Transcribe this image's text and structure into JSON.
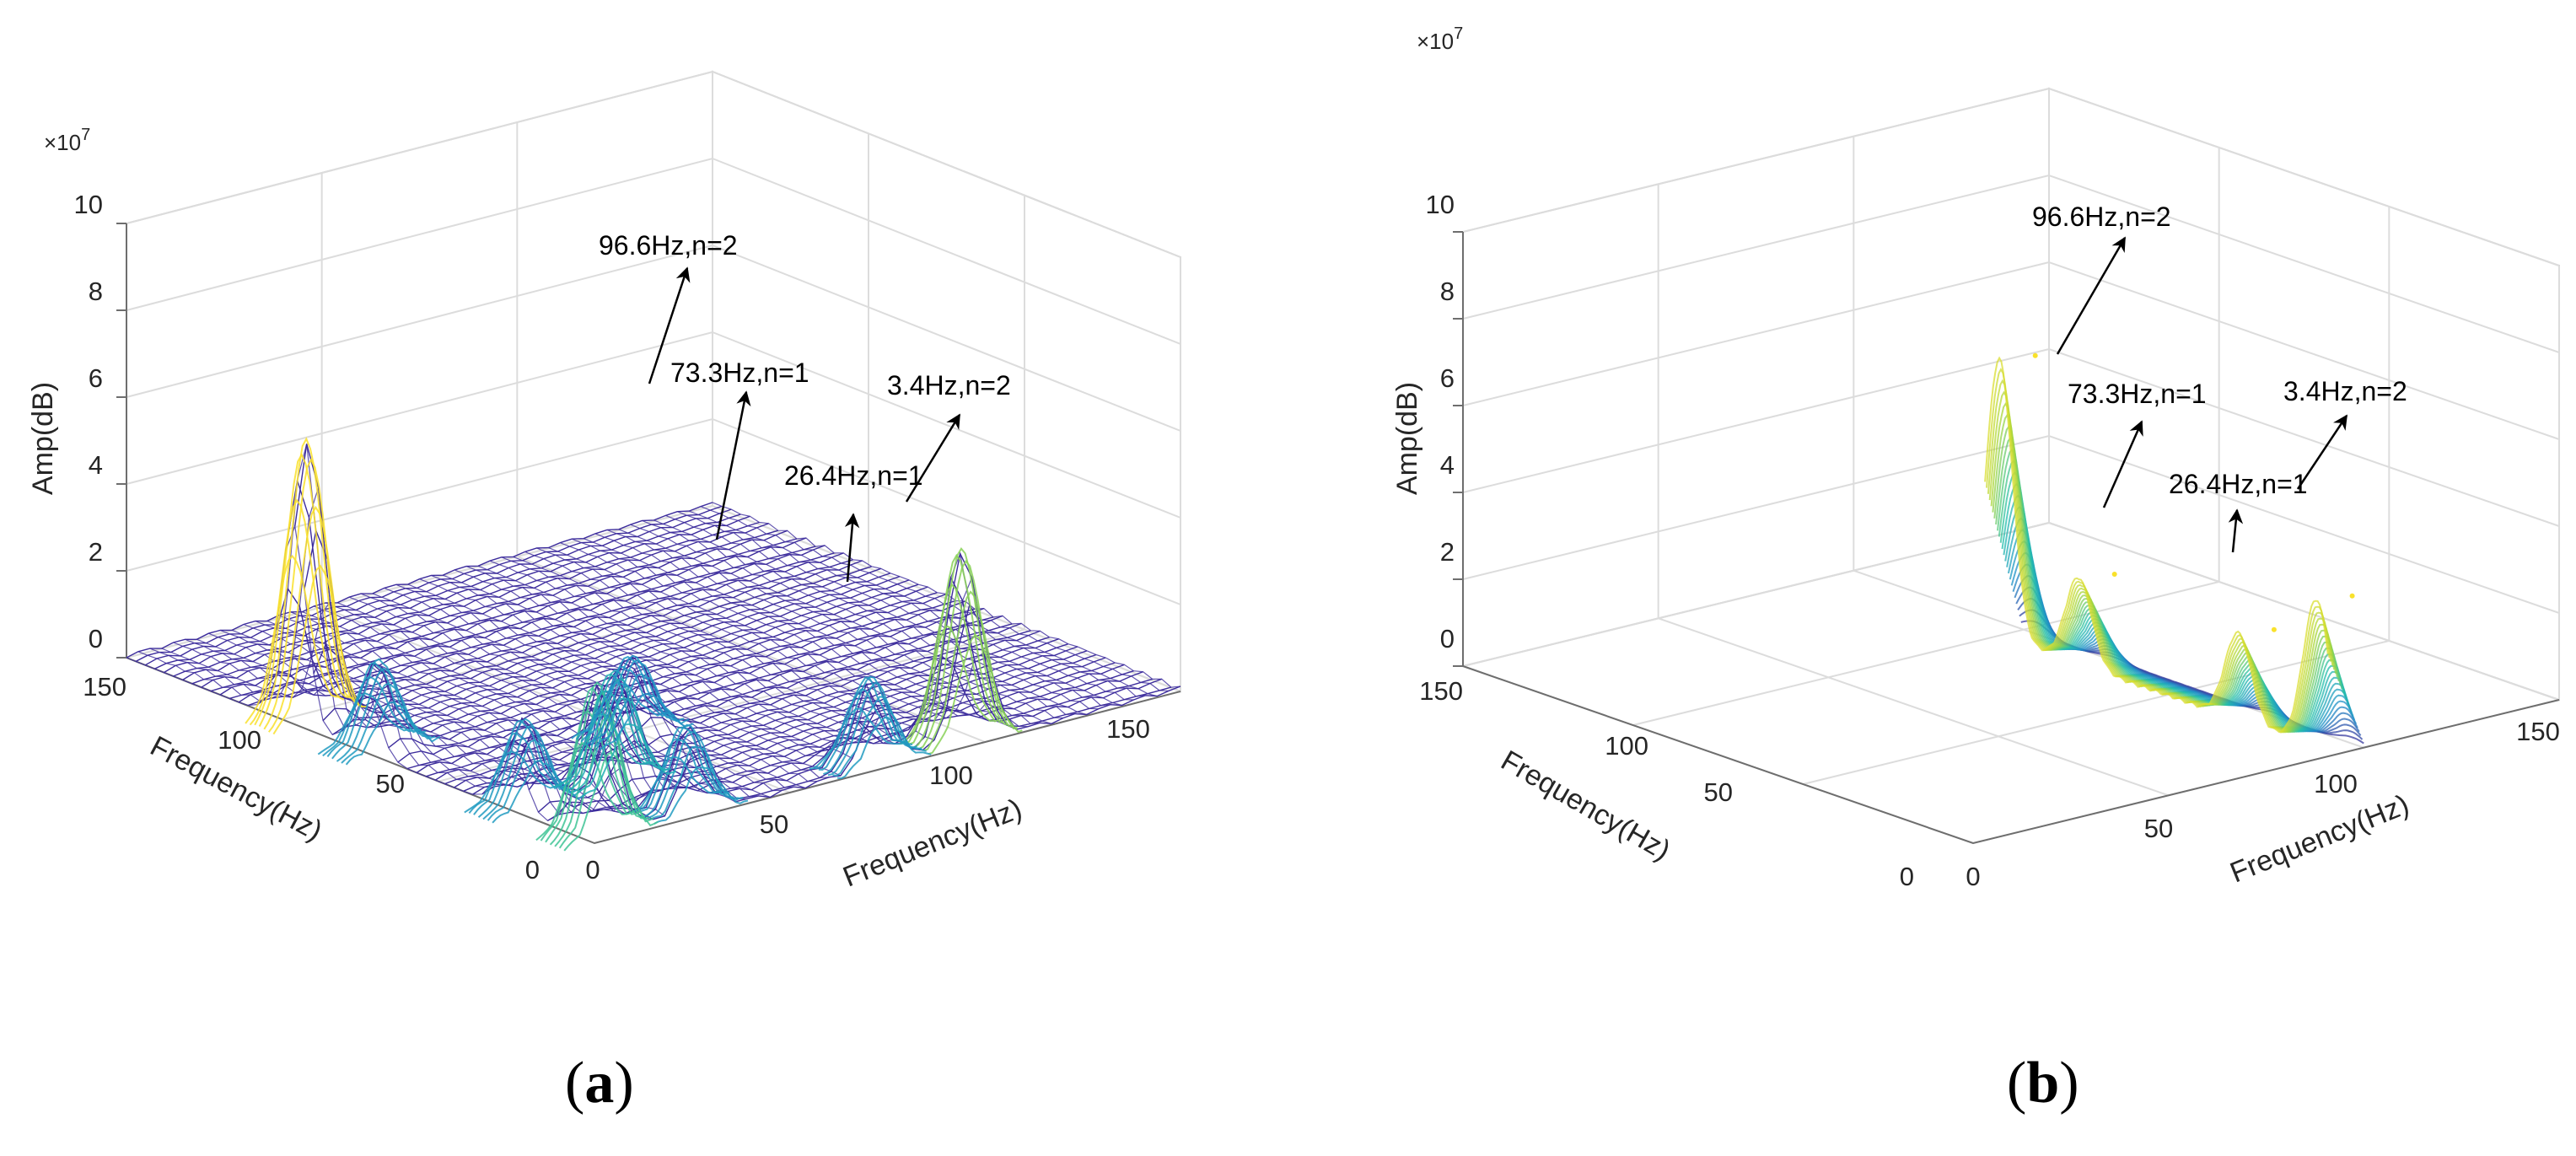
{
  "figure": {
    "panels": [
      {
        "id": "a",
        "label": "a",
        "multiplier": "×10",
        "multiplier_exp": "7",
        "zlabel": "Amp(dB)",
        "xlabel": "Frequency(Hz)",
        "ylabel": "Frequency(Hz)",
        "z_ticks": [
          "0",
          "2",
          "4",
          "6",
          "8",
          "10"
        ],
        "x_ticks": [
          "0",
          "50",
          "100",
          "150"
        ],
        "y_ticks": [
          "0",
          "50",
          "100",
          "150"
        ],
        "annotations": [
          "96.6Hz,n=2",
          "73.3Hz,n=1",
          "26.4Hz,n=1",
          "3.4Hz,n=2"
        ]
      },
      {
        "id": "b",
        "label": "b",
        "multiplier": "×10",
        "multiplier_exp": "7",
        "zlabel": "Amp(dB)",
        "xlabel": "Frequency(Hz)",
        "ylabel": "Frequency(Hz)",
        "z_ticks": [
          "0",
          "2",
          "4",
          "6",
          "8",
          "10"
        ],
        "x_ticks": [
          "0",
          "50",
          "100",
          "150"
        ],
        "y_ticks": [
          "0",
          "50",
          "100",
          "150"
        ],
        "annotations": [
          "96.6Hz,n=2",
          "73.3Hz,n=1",
          "26.4Hz,n=1",
          "3.4Hz,n=2"
        ]
      }
    ]
  },
  "chart_data": [
    {
      "type": "surface",
      "panel": "a",
      "xlabel": "Frequency(Hz)",
      "ylabel": "Frequency(Hz)",
      "zlabel": "Amp(dB)",
      "z_multiplier": "×10^7",
      "xlim": [
        0,
        150
      ],
      "ylim": [
        0,
        150
      ],
      "zlim": [
        0,
        10
      ],
      "grid": true,
      "colormap": [
        "#3b2a98",
        "#1f8fc8",
        "#26c0aa",
        "#a9d63b",
        "#f9e12b"
      ],
      "peaks": [
        {
          "x": 3.4,
          "y": 96.6,
          "z": 6.4
        },
        {
          "x": 96.6,
          "y": 3.4,
          "z": 4.4
        },
        {
          "x": 3.4,
          "y": 73.3,
          "z": 2.0
        },
        {
          "x": 73.3,
          "y": 3.4,
          "z": 2.0
        },
        {
          "x": 3.4,
          "y": 26.4,
          "z": 2.0
        },
        {
          "x": 26.4,
          "y": 3.4,
          "z": 2.0
        },
        {
          "x": 3.4,
          "y": 3.4,
          "z": 3.5
        },
        {
          "x": 26.4,
          "y": 26.4,
          "z": 2.6
        },
        {
          "x": 48.5,
          "y": 48.5,
          "z": 1.8
        }
      ],
      "annotations": [
        {
          "text": "96.6Hz,n=2"
        },
        {
          "text": "73.3Hz,n=1"
        },
        {
          "text": "26.4Hz,n=1"
        },
        {
          "text": "3.4Hz,n=2"
        }
      ]
    },
    {
      "type": "surface",
      "panel": "b",
      "xlabel": "Frequency(Hz)",
      "ylabel": "Frequency(Hz)",
      "zlabel": "Amp(dB)",
      "z_multiplier": "×10^7",
      "xlim": [
        0,
        150
      ],
      "ylim": [
        0,
        150
      ],
      "zlim": [
        0,
        10
      ],
      "grid": true,
      "colormap": [
        "#3b2a98",
        "#1f8fc8",
        "#26c0aa",
        "#a9d63b",
        "#f9e12b"
      ],
      "slice_x": 100,
      "peaks": [
        {
          "y": 96.6,
          "z": 6.4
        },
        {
          "y": 73.3,
          "z": 2.0
        },
        {
          "y": 26.4,
          "z": 2.0
        },
        {
          "y": 3.4,
          "z": 3.4
        }
      ],
      "annotations": [
        {
          "text": "96.6Hz,n=2"
        },
        {
          "text": "73.3Hz,n=1"
        },
        {
          "text": "26.4Hz,n=1"
        },
        {
          "text": "3.4Hz,n=2"
        }
      ]
    }
  ]
}
